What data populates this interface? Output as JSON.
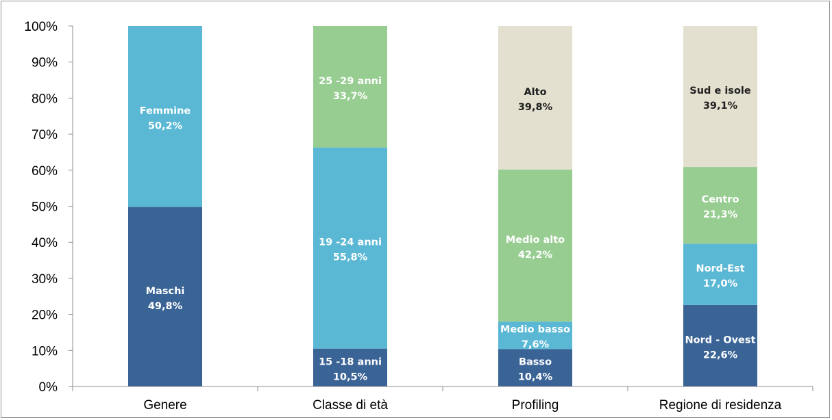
{
  "chart_data": {
    "type": "bar",
    "stacked": "percent",
    "categories": [
      "Genere",
      "Classe di età",
      "Profiling",
      "Regione di residenza"
    ],
    "ylim": [
      0,
      100
    ],
    "y_ticks": [
      "0%",
      "10%",
      "20%",
      "30%",
      "40%",
      "50%",
      "60%",
      "70%",
      "80%",
      "90%",
      "100%"
    ],
    "grid": false,
    "legend": "none",
    "stacks": [
      {
        "category": "Genere",
        "segments": [
          {
            "label": "Maschi",
            "value_label": "49,8%",
            "value": 49.8,
            "color": "#3b6496",
            "text_color": "#ffffff"
          },
          {
            "label": "Femmine",
            "value_label": "50,2%",
            "value": 50.2,
            "color": "#5bb8d5",
            "text_color": "#ffffff"
          }
        ]
      },
      {
        "category": "Classe di età",
        "segments": [
          {
            "label": "15 -18 anni",
            "value_label": "10,5%",
            "value": 10.5,
            "color": "#3b6496",
            "text_color": "#ffffff"
          },
          {
            "label": "19 -24 anni",
            "value_label": "55,8%",
            "value": 55.8,
            "color": "#5bb8d5",
            "text_color": "#ffffff"
          },
          {
            "label": "25 -29 anni",
            "value_label": "33,7%",
            "value": 33.7,
            "color": "#98cd92",
            "text_color": "#ffffff"
          }
        ]
      },
      {
        "category": "Profiling",
        "segments": [
          {
            "label": "Basso",
            "value_label": "10,4%",
            "value": 10.4,
            "color": "#3b6496",
            "text_color": "#ffffff"
          },
          {
            "label": "Medio basso",
            "value_label": "7,6%",
            "value": 7.6,
            "color": "#5bb8d5",
            "text_color": "#ffffff"
          },
          {
            "label": "Medio alto",
            "value_label": "42,2%",
            "value": 42.2,
            "color": "#98cd92",
            "text_color": "#ffffff"
          },
          {
            "label": "Alto",
            "value_label": "39,8%",
            "value": 39.8,
            "color": "#e3e0cf",
            "text_color": "#1f1f1f"
          }
        ]
      },
      {
        "category": "Regione di residenza",
        "segments": [
          {
            "label": "Nord - Ovest",
            "value_label": "22,6%",
            "value": 22.6,
            "color": "#3b6496",
            "text_color": "#ffffff"
          },
          {
            "label": "Nord-Est",
            "value_label": "17,0%",
            "value": 17.0,
            "color": "#5bb8d5",
            "text_color": "#ffffff"
          },
          {
            "label": "Centro",
            "value_label": "21,3%",
            "value": 21.3,
            "color": "#98cd92",
            "text_color": "#ffffff"
          },
          {
            "label": "Sud e isole",
            "value_label": "39,1%",
            "value": 39.1,
            "color": "#e3e0cf",
            "text_color": "#1f1f1f"
          }
        ]
      }
    ]
  }
}
